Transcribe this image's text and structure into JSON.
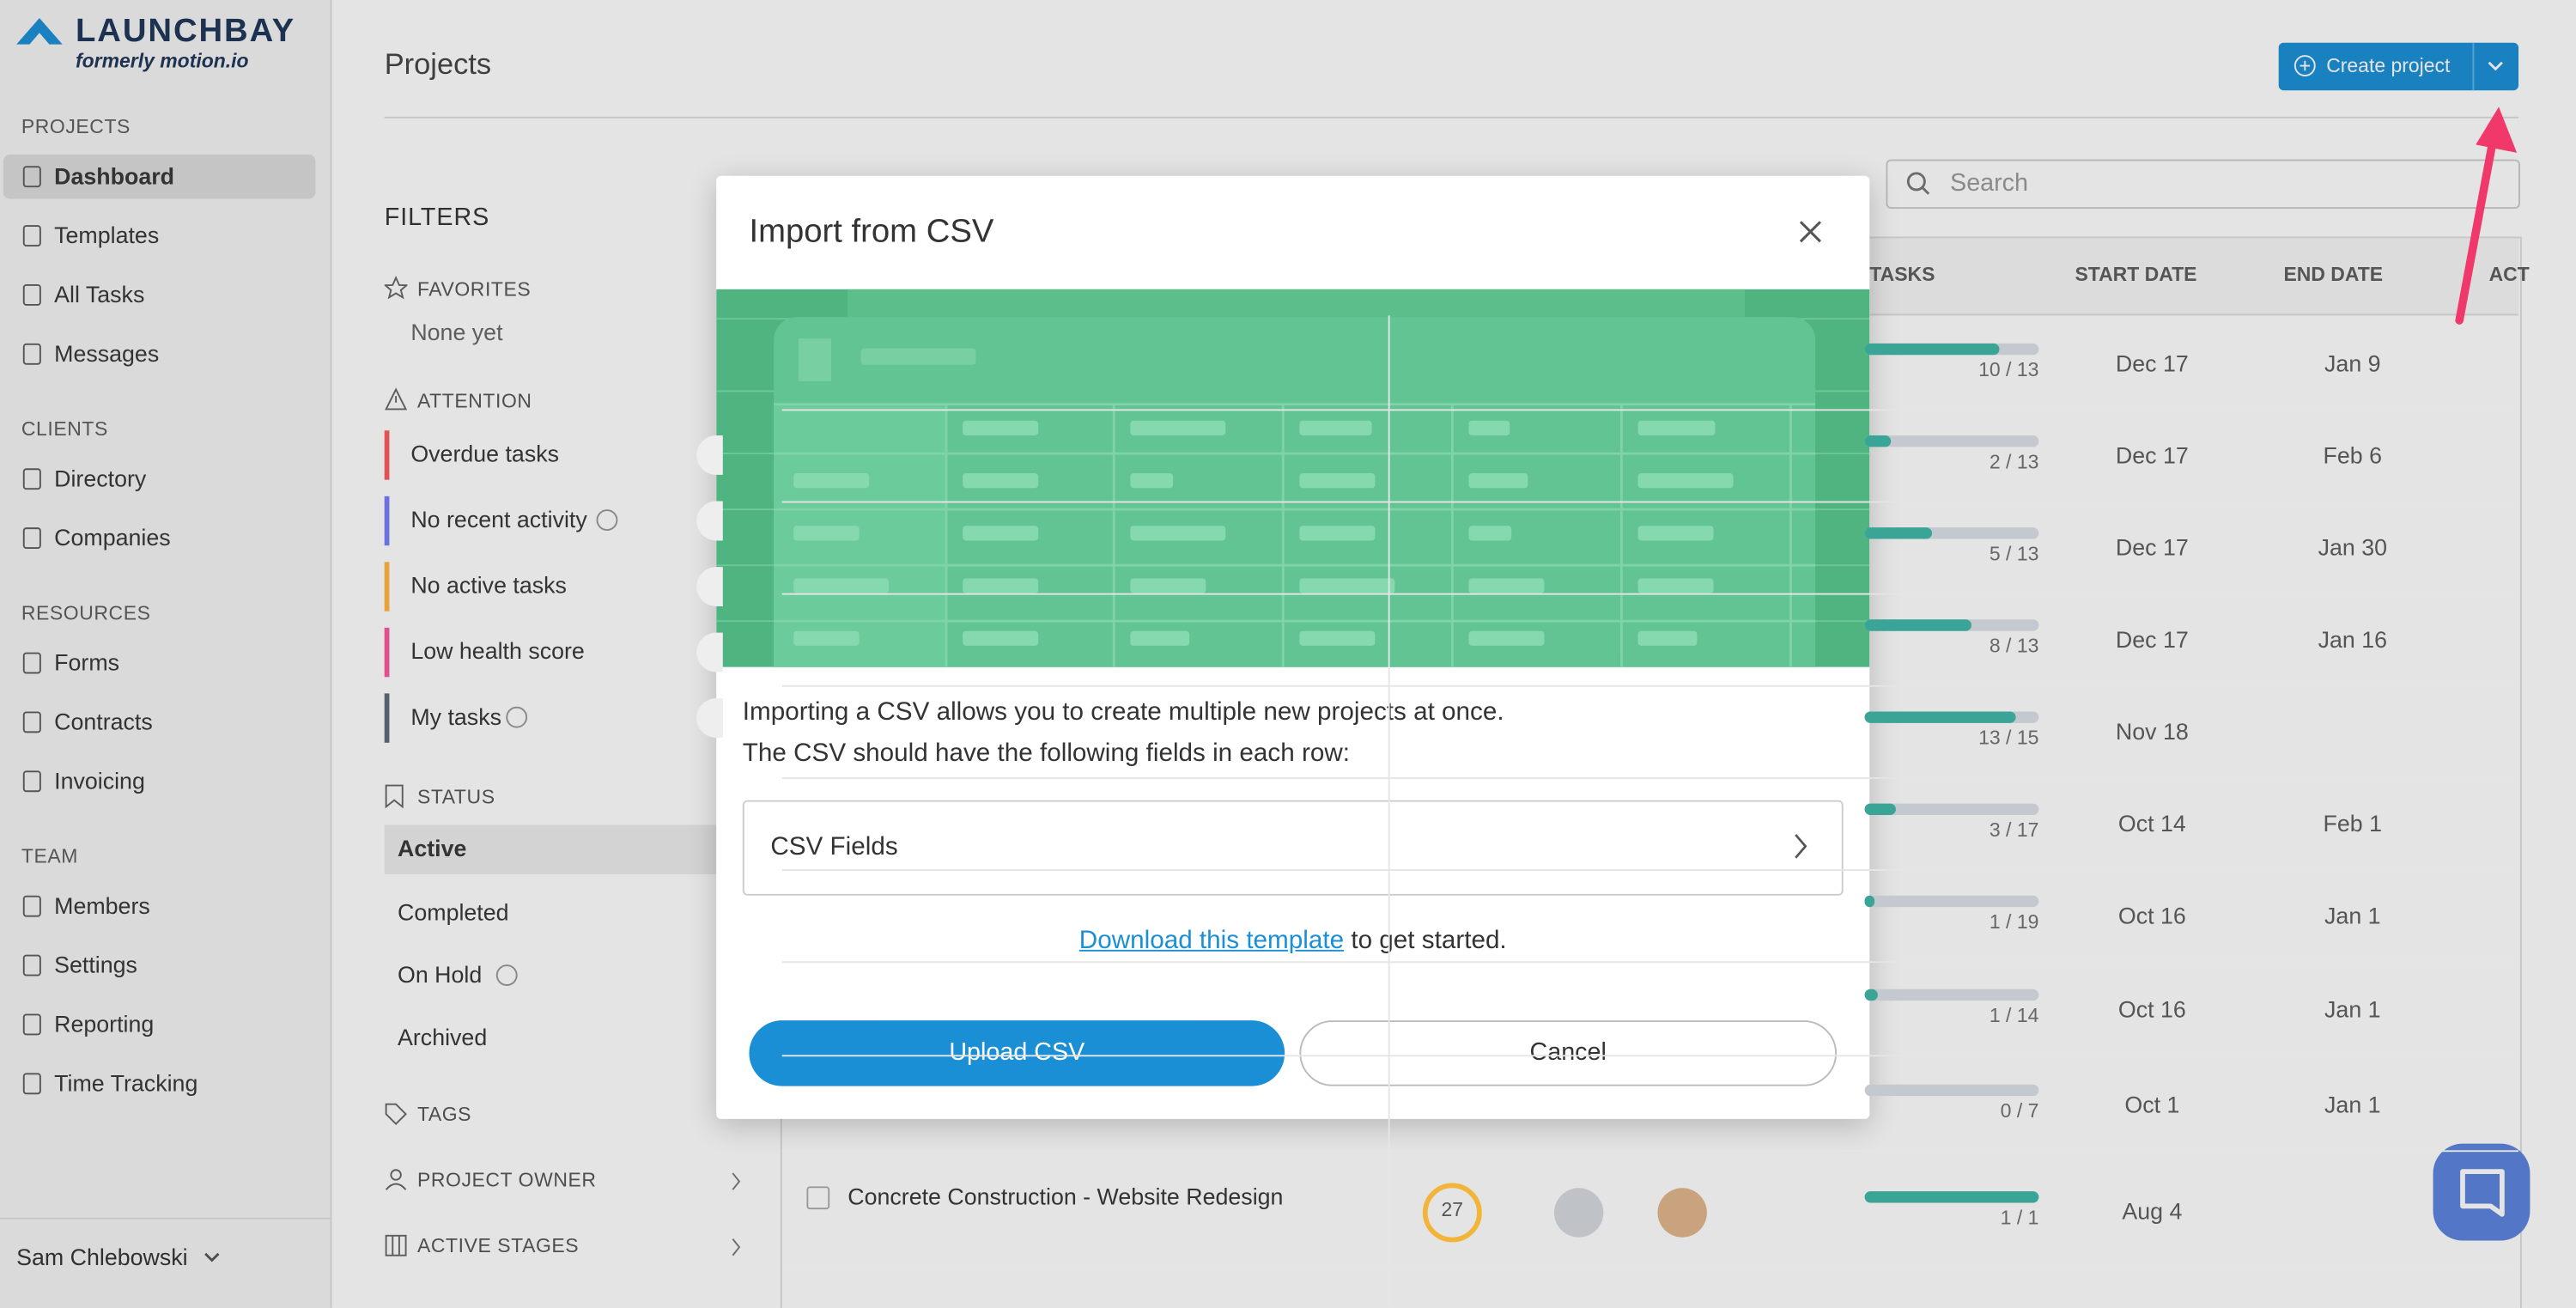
{
  "sidebar": {
    "logo": "LAUNCHBAY",
    "tagline": "formerly motion.io",
    "sections": [
      {
        "title": "PROJECTS",
        "items": [
          "Dashboard",
          "Templates",
          "All Tasks",
          "Messages"
        ]
      },
      {
        "title": "CLIENTS",
        "items": [
          "Directory",
          "Companies"
        ]
      },
      {
        "title": "RESOURCES",
        "items": [
          "Forms",
          "Contracts",
          "Invoicing"
        ]
      },
      {
        "title": "TEAM",
        "items": [
          "Members",
          "Settings",
          "Reporting",
          "Time Tracking"
        ]
      }
    ],
    "user": "Sam Chlebowski"
  },
  "header": {
    "title": "Projects",
    "create_button": "Create project",
    "search_placeholder": "Search"
  },
  "filters": {
    "title": "FILTERS",
    "favorites": {
      "title": "FAVORITES",
      "empty": "None yet"
    },
    "attention": {
      "title": "ATTENTION",
      "items": [
        "Overdue tasks",
        "No recent activity",
        "No active tasks",
        "Low health score",
        "My tasks"
      ]
    },
    "status": {
      "title": "STATUS",
      "items": [
        "Active",
        "Completed",
        "On Hold",
        "Archived"
      ]
    },
    "tags": "TAGS",
    "project_owner": "PROJECT OWNER",
    "active_stages": "ACTIVE STAGES"
  },
  "table": {
    "columns": [
      "TASKS",
      "START DATE",
      "END DATE",
      "ACT"
    ],
    "rows": [
      {
        "tasks": "10 / 13",
        "start": "Dec 17",
        "end": "Jan 9"
      },
      {
        "tasks": "2 / 13",
        "start": "Dec 17",
        "end": "Feb 6"
      },
      {
        "tasks": "5 / 13",
        "start": "Dec 17",
        "end": "Jan 30"
      },
      {
        "tasks": "8 / 13",
        "start": "Dec 17",
        "end": "Jan 16"
      },
      {
        "tasks": "13 / 15",
        "start": "Nov 18"
      },
      {
        "tasks": "3 / 17",
        "start": "Oct 14",
        "end": "Feb 1"
      },
      {
        "tasks": "1 / 19",
        "start": "Oct 16",
        "end": "Jan 1"
      },
      {
        "tasks": "1 / 14",
        "start": "Oct 16",
        "end": "Jan 1"
      },
      {
        "tasks": "0 / 7",
        "start": "Oct 1",
        "end": "Jan 1"
      },
      {
        "name": "Concrete Construction - Website Redesign",
        "health": 27,
        "tasks": "1 / 1",
        "start": "Aug 4"
      }
    ]
  },
  "modal": {
    "title": "Import from CSV",
    "description": [
      "Importing a CSV allows you to create multiple new projects at once.",
      "The CSV should have the following fields in each row:"
    ],
    "csv_fields": "CSV Fields",
    "download_link": "Download this template",
    "download_suffix": "to get started.",
    "upload_button": "Upload CSV",
    "cancel_button": "Cancel"
  }
}
